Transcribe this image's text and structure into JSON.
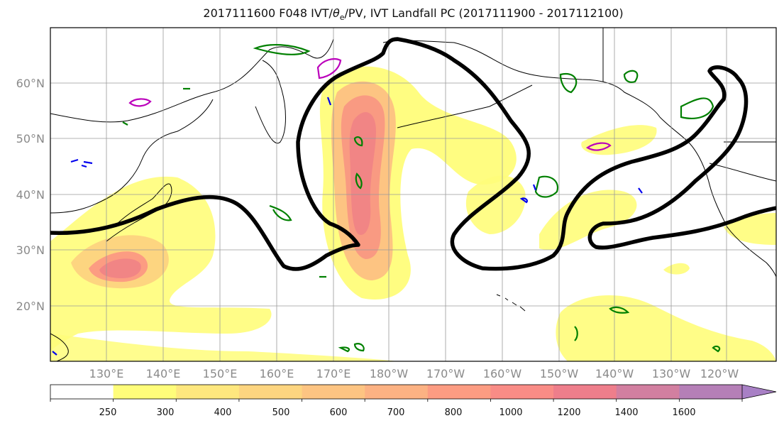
{
  "title": {
    "prefix": "2017111600 F048 IVT/",
    "theta": "θ",
    "theta_sub": "e",
    "suffix": "/PV, IVT Landfall PC (2017111900 - 2017112100)"
  },
  "map": {
    "lat_labels": [
      "60°N",
      "50°N",
      "40°N",
      "30°N",
      "20°N"
    ],
    "lon_labels": [
      "130°E",
      "140°E",
      "150°E",
      "160°E",
      "170°E",
      "180°W",
      "170°W",
      "160°W",
      "150°W",
      "140°W",
      "130°W",
      "120°W"
    ]
  },
  "colorbar": {
    "labels": [
      "250",
      "300",
      "400",
      "500",
      "600",
      "700",
      "800",
      "1000",
      "1200",
      "1400",
      "1600"
    ],
    "colors": [
      "#ffffff",
      "#fffd7a",
      "#fee77e",
      "#fdd580",
      "#fdc482",
      "#fcb283",
      "#fc9c82",
      "#f98c86",
      "#ee7e8b",
      "#d27fa0",
      "#b57fb7",
      "#a880c5"
    ]
  },
  "legend_colors": {
    "ivt_fill_low": "#fffd7a",
    "ivt_fill_high": "#f18585",
    "landfall_contour": "#000000",
    "theta_contour": "#008000",
    "pv_contour_magenta": "#bb00bb",
    "pv_contour_blue": "#0000ee"
  }
}
